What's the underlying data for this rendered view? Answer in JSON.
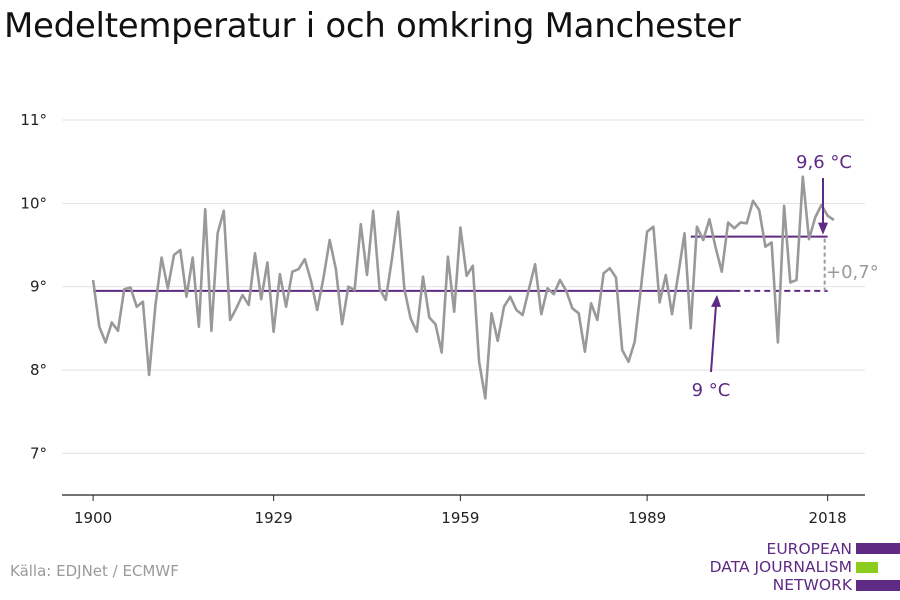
{
  "title": "Medeltemperatur i och omkring Manchester",
  "source": "Källa: EDJNet / ECMWF",
  "logo": {
    "lines": [
      "EUROPEAN",
      "DATA JOURNALISM",
      "NETWORK"
    ]
  },
  "colors": {
    "series": "#999999",
    "accent": "#5e2a84",
    "grid": "#e2e2e2",
    "logo_green": "#8ccc1e"
  },
  "chart_data": {
    "type": "line",
    "title": "Medeltemperatur i och omkring Manchester",
    "xlabel": "",
    "ylabel": "",
    "xlim": [
      1895,
      2024
    ],
    "ylim": [
      6.5,
      11.0
    ],
    "x_ticks": [
      1900,
      1929,
      1959,
      1989,
      2018
    ],
    "x_tick_labels": [
      "1900",
      "1929",
      "1959",
      "1989",
      "2018"
    ],
    "y_ticks": [
      7,
      8,
      9,
      10,
      11
    ],
    "y_tick_labels": [
      "7°",
      "8°",
      "9°",
      "10°",
      "11°"
    ],
    "grid": true,
    "series": [
      {
        "x": [
          1900,
          1901,
          1902,
          1903,
          1904,
          1905,
          1906,
          1907,
          1908,
          1909,
          1910,
          1911,
          1912,
          1913,
          1914,
          1915,
          1916,
          1917,
          1918,
          1919,
          1920,
          1921,
          1922,
          1923,
          1924,
          1925,
          1926,
          1927,
          1928,
          1929,
          1930,
          1931,
          1932,
          1933,
          1934,
          1935,
          1936,
          1937,
          1938,
          1939,
          1940,
          1941,
          1942,
          1943,
          1944,
          1945,
          1946,
          1947,
          1948,
          1949,
          1950,
          1951,
          1952,
          1953,
          1954,
          1955,
          1956,
          1957,
          1958,
          1959,
          1960,
          1961,
          1962,
          1963,
          1964,
          1965,
          1966,
          1967,
          1968,
          1969,
          1970,
          1971,
          1972,
          1973,
          1974,
          1975,
          1976,
          1977,
          1978,
          1979,
          1980,
          1981,
          1982,
          1983,
          1984,
          1985,
          1986,
          1987,
          1988,
          1989,
          1990,
          1991,
          1992,
          1993,
          1994,
          1995,
          1996,
          1997,
          1998,
          1999,
          2000,
          2001,
          2002,
          2003,
          2004,
          2005,
          2006,
          2007,
          2008,
          2009,
          2010,
          2011,
          2012,
          2013,
          2014,
          2015,
          2016,
          2017,
          2018,
          2019
        ],
        "values": [
          9.08,
          8.52,
          8.33,
          8.57,
          8.47,
          8.97,
          8.99,
          8.76,
          8.82,
          7.94,
          8.77,
          9.35,
          8.98,
          9.38,
          9.44,
          8.88,
          9.35,
          8.52,
          9.93,
          8.47,
          9.64,
          9.91,
          8.6,
          8.74,
          8.9,
          8.78,
          9.4,
          8.85,
          9.29,
          8.46,
          9.15,
          8.76,
          9.18,
          9.21,
          9.33,
          9.07,
          8.72,
          9.1,
          9.56,
          9.21,
          8.55,
          9.0,
          8.96,
          9.75,
          9.14,
          9.91,
          8.98,
          8.84,
          9.33,
          9.9,
          8.97,
          8.62,
          8.46,
          9.12,
          8.63,
          8.55,
          8.21,
          9.36,
          8.7,
          9.71,
          9.13,
          9.25,
          8.1,
          7.66,
          8.68,
          8.35,
          8.76,
          8.88,
          8.72,
          8.66,
          8.97,
          9.27,
          8.67,
          8.98,
          8.91,
          9.08,
          8.95,
          8.74,
          8.68,
          8.22,
          8.8,
          8.6,
          9.16,
          9.22,
          9.11,
          8.24,
          8.1,
          8.34,
          8.98,
          9.66,
          9.72,
          8.81,
          9.14,
          8.67,
          9.15,
          9.64,
          8.5,
          9.72,
          9.56,
          9.81,
          9.47,
          9.18,
          9.77,
          9.7,
          9.77,
          9.76,
          10.03,
          9.92,
          9.48,
          9.53,
          8.33,
          9.97,
          9.05,
          9.08,
          10.32,
          9.57,
          9.83,
          9.98,
          9.85,
          9.8
        ]
      }
    ],
    "reference_lines": [
      {
        "label": "9 °C",
        "value": 8.95,
        "x_from": 1900,
        "x_to": 2003,
        "x_dashed_to": 2018
      },
      {
        "label": "9,6 °C",
        "value": 9.6,
        "x_from": 1996,
        "x_to": 2018
      }
    ],
    "annotations": {
      "difference_label": "+0,7°"
    }
  }
}
